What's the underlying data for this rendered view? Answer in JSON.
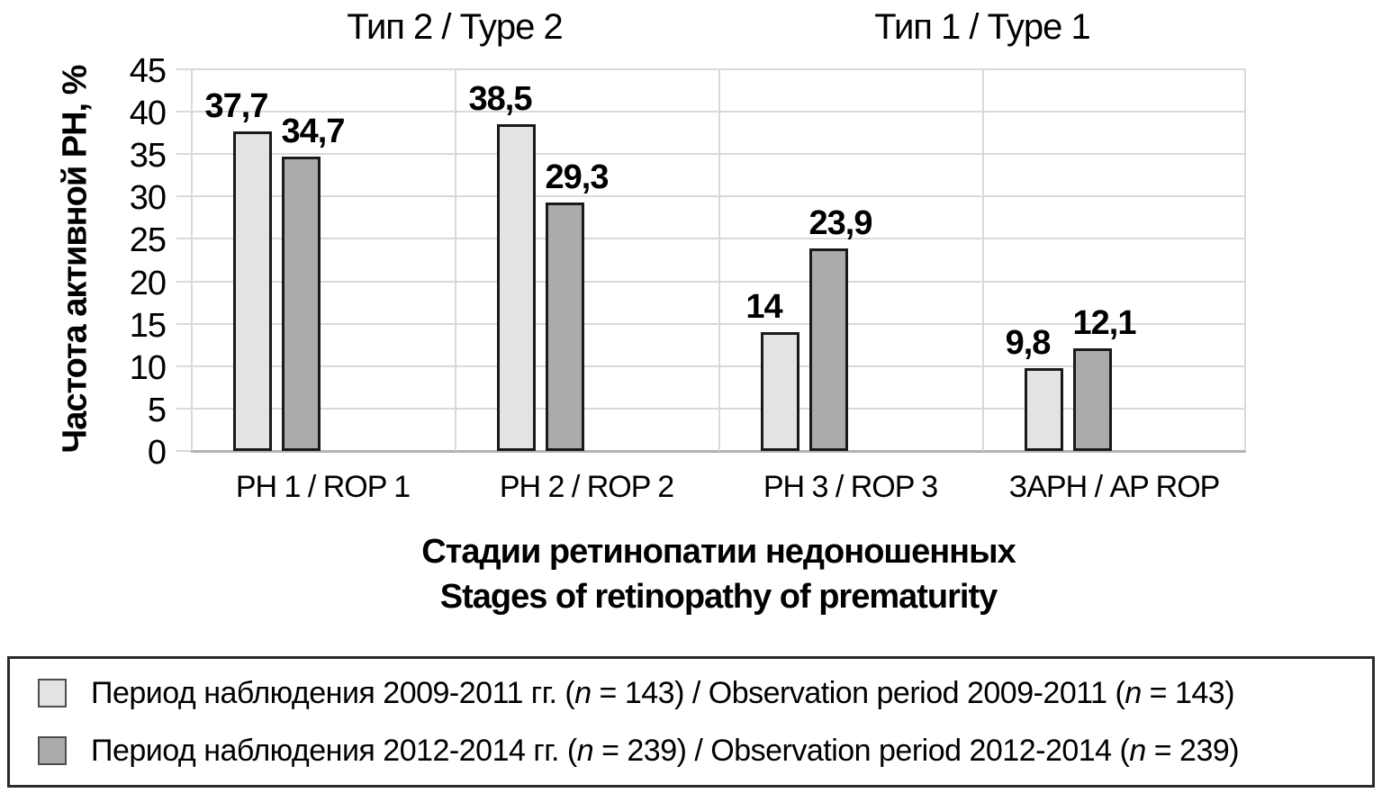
{
  "figure": {
    "group_titles": [
      "Тип 2 / Type 2",
      "Тип 1 / Type 1"
    ],
    "y_axis": {
      "title": "Частота активной РН, %",
      "ticks": [
        "45",
        "40",
        "35",
        "30",
        "25",
        "20",
        "15",
        "10",
        "5",
        "0"
      ]
    },
    "x_axis": {
      "title_line_1": "Стадии ретинопатии недоношенных",
      "title_line_2": "Stages of retinopathy of prematurity",
      "categories": [
        "РН 1 / ROP 1",
        "РН 2 / ROP 2",
        "РН 3 / ROP 3",
        "ЗАРН / AP ROP"
      ]
    },
    "legend": {
      "items": [
        {
          "swatch_color": "#e3e3e3",
          "segments": [
            {
              "text": "Период наблюдения 2009-2011 гг. (",
              "italic": false
            },
            {
              "text": "n",
              "italic": true
            },
            {
              "text": " = 143) / Observation period 2009-2011 (",
              "italic": false
            },
            {
              "text": "n",
              "italic": true
            },
            {
              "text": " = 143)",
              "italic": false
            }
          ]
        },
        {
          "swatch_color": "#ababab",
          "segments": [
            {
              "text": "Период наблюдения 2012-2014 гг. (",
              "italic": false
            },
            {
              "text": "n",
              "italic": true
            },
            {
              "text": " = 239) / Observation period 2012-2014 (",
              "italic": false
            },
            {
              "text": "n",
              "italic": true
            },
            {
              "text": " = 239)",
              "italic": false
            }
          ]
        }
      ]
    }
  },
  "chart_data": {
    "type": "bar",
    "categories": [
      "РН 1 / ROP 1",
      "РН 2 / ROP 2",
      "РН 3 / ROP 3",
      "ЗАРН / AP ROP"
    ],
    "category_groups": [
      {
        "label": "Тип 2 / Type 2",
        "category_indexes": [
          0,
          1
        ]
      },
      {
        "label": "Тип 1 / Type 1",
        "category_indexes": [
          2,
          3
        ]
      }
    ],
    "series": [
      {
        "name": "Период наблюдения 2009-2011 гг. (n = 143) / Observation period 2009-2011 (n = 143)",
        "color": "#e3e3e3",
        "values": [
          37.7,
          38.5,
          14,
          9.8
        ],
        "value_labels": [
          "37,7",
          "38,5",
          "14",
          "9,8"
        ]
      },
      {
        "name": "Период наблюдения 2012-2014 гг. (n = 239) / Observation period 2012-2014 (n = 239)",
        "color": "#ababab",
        "values": [
          34.7,
          29.3,
          23.9,
          12.1
        ],
        "value_labels": [
          "34,7",
          "29,3",
          "23,9",
          "12,1"
        ]
      }
    ],
    "title": "",
    "xlabel": "Стадии ретинопатии недоношенных / Stages of retinopathy of prematurity",
    "ylabel": "Частота активной РН, %",
    "ylim": [
      0,
      45
    ],
    "ytick_step": 5,
    "grid": true,
    "legend_position": "bottom"
  }
}
